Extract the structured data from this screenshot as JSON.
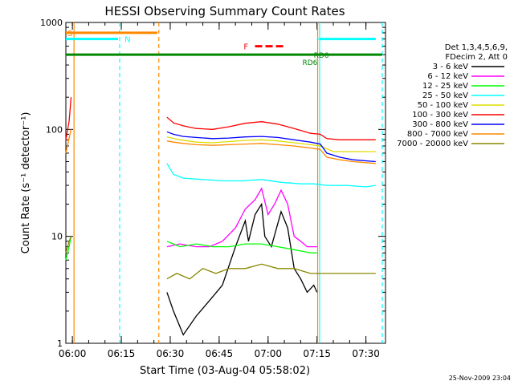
{
  "chart_data": {
    "type": "line",
    "title": "HESSI Observing Summary Count Rates",
    "xlabel": "Start Time (03-Aug-04 05:58:02)",
    "ylabel": "Count Rate (s⁻¹ detector⁻¹)",
    "ylog": true,
    "ylim": [
      1,
      1000
    ],
    "xlim_minutes": [
      0,
      98
    ],
    "x_ticks": [
      {
        "label": "06:00",
        "value": 2
      },
      {
        "label": "06:15",
        "value": 17
      },
      {
        "label": "06:30",
        "value": 32
      },
      {
        "label": "06:45",
        "value": 47
      },
      {
        "label": "07:00",
        "value": 62
      },
      {
        "label": "07:15",
        "value": 77
      },
      {
        "label": "07:30",
        "value": 92
      }
    ],
    "y_ticks": [
      {
        "label": "1",
        "value": 1
      },
      {
        "label": "10",
        "value": 10
      },
      {
        "label": "100",
        "value": 100
      },
      {
        "label": "1000",
        "value": 1000
      }
    ],
    "legend": {
      "placement": "right",
      "header": [
        "Det 1,3,4,5,6,9,",
        "FDecim 2, Att 0"
      ]
    },
    "series": [
      {
        "name": "3 - 6 keV",
        "color": "#000000",
        "segments": [
          [
            [
              31,
              3
            ],
            [
              33,
              2
            ],
            [
              36,
              1.2
            ],
            [
              40,
              1.8
            ],
            [
              44,
              2.5
            ],
            [
              48,
              3.5
            ],
            [
              52,
              8
            ],
            [
              55,
              14
            ],
            [
              56,
              9
            ],
            [
              58,
              16
            ],
            [
              60,
              20
            ],
            [
              61,
              10
            ],
            [
              63,
              8
            ],
            [
              66,
              17
            ],
            [
              68,
              12
            ],
            [
              70,
              5
            ],
            [
              72,
              4
            ],
            [
              74,
              3
            ],
            [
              76,
              3.5
            ],
            [
              77,
              3
            ]
          ]
        ]
      },
      {
        "name": "6 - 12 keV",
        "color": "#ff00ff",
        "segments": [
          [
            [
              31,
              8
            ],
            [
              35,
              8.5
            ],
            [
              40,
              8
            ],
            [
              44,
              8
            ],
            [
              48,
              9
            ],
            [
              52,
              12
            ],
            [
              55,
              18
            ],
            [
              58,
              22
            ],
            [
              60,
              28
            ],
            [
              62,
              16
            ],
            [
              64,
              20
            ],
            [
              66,
              27
            ],
            [
              68,
              20
            ],
            [
              70,
              10
            ],
            [
              72,
              9
            ],
            [
              74,
              8
            ],
            [
              77,
              8
            ]
          ]
        ]
      },
      {
        "name": "12 - 25 keV",
        "color": "#00ff00",
        "segments": [
          [
            [
              0,
              6
            ],
            [
              1,
              8
            ],
            [
              1.6,
              10
            ]
          ],
          [
            [
              31,
              9
            ],
            [
              35,
              8
            ],
            [
              40,
              8.5
            ],
            [
              45,
              8
            ],
            [
              50,
              8
            ],
            [
              55,
              8.5
            ],
            [
              60,
              8.5
            ],
            [
              65,
              8
            ],
            [
              70,
              7.5
            ],
            [
              75,
              7
            ],
            [
              77,
              7
            ]
          ]
        ]
      },
      {
        "name": "25 - 50 keV",
        "color": "#00ffff",
        "segments": [
          [
            [
              0,
              700
            ],
            [
              16,
              700
            ]
          ],
          [
            [
              31,
              48
            ],
            [
              33,
              38
            ],
            [
              36,
              35
            ],
            [
              42,
              34
            ],
            [
              48,
              33
            ],
            [
              54,
              33
            ],
            [
              60,
              34
            ],
            [
              66,
              32
            ],
            [
              72,
              31
            ],
            [
              76,
              31
            ],
            [
              80,
              30
            ],
            [
              86,
              30
            ],
            [
              92,
              29
            ],
            [
              95,
              30
            ]
          ],
          [
            [
              77,
              700
            ],
            [
              95,
              700
            ]
          ]
        ]
      },
      {
        "name": "50 - 100 keV",
        "color": "#dddd00",
        "segments": [
          [
            [
              31,
              85
            ],
            [
              35,
              80
            ],
            [
              40,
              76
            ],
            [
              45,
              75
            ],
            [
              50,
              77
            ],
            [
              55,
              79
            ],
            [
              60,
              80
            ],
            [
              65,
              78
            ],
            [
              70,
              75
            ],
            [
              75,
              72
            ],
            [
              78,
              70
            ],
            [
              82,
              62
            ],
            [
              88,
              62
            ],
            [
              95,
              62
            ]
          ]
        ]
      },
      {
        "name": "100 - 300 keV",
        "color": "#ff0000",
        "segments": [
          [
            [
              0,
              80
            ],
            [
              1,
              120
            ],
            [
              1.6,
              200
            ]
          ],
          [
            [
              31,
              130
            ],
            [
              33,
              115
            ],
            [
              36,
              108
            ],
            [
              40,
              102
            ],
            [
              45,
              100
            ],
            [
              50,
              106
            ],
            [
              55,
              114
            ],
            [
              60,
              118
            ],
            [
              65,
              112
            ],
            [
              70,
              102
            ],
            [
              75,
              92
            ],
            [
              78,
              90
            ],
            [
              80,
              82
            ],
            [
              84,
              80
            ],
            [
              88,
              80
            ],
            [
              95,
              80
            ]
          ]
        ]
      },
      {
        "name": "300 - 800 keV",
        "color": "#0000ff",
        "segments": [
          [
            [
              31,
              95
            ],
            [
              33,
              90
            ],
            [
              36,
              86
            ],
            [
              40,
              84
            ],
            [
              45,
              82
            ],
            [
              50,
              83
            ],
            [
              55,
              85
            ],
            [
              60,
              86
            ],
            [
              65,
              84
            ],
            [
              70,
              80
            ],
            [
              75,
              76
            ],
            [
              78,
              73
            ],
            [
              80,
              60
            ],
            [
              84,
              55
            ],
            [
              88,
              52
            ],
            [
              95,
              50
            ]
          ]
        ]
      },
      {
        "name": "800 - 7000 keV",
        "color": "#ff8800",
        "segments": [
          [
            [
              0,
              60
            ],
            [
              1.6,
              100
            ]
          ],
          [
            [
              0,
              800
            ],
            [
              28,
              800
            ]
          ],
          [
            [
              31,
              78
            ],
            [
              33,
              76
            ],
            [
              36,
              74
            ],
            [
              40,
              72
            ],
            [
              45,
              71
            ],
            [
              50,
              72
            ],
            [
              55,
              73
            ],
            [
              60,
              74
            ],
            [
              65,
              72
            ],
            [
              70,
              70
            ],
            [
              75,
              67
            ],
            [
              78,
              65
            ],
            [
              80,
              55
            ],
            [
              84,
              52
            ],
            [
              88,
              50
            ],
            [
              95,
              48
            ]
          ]
        ]
      },
      {
        "name": "7000 - 20000 keV",
        "color": "#888800",
        "segments": [
          [
            [
              0,
              7
            ],
            [
              1,
              9
            ],
            [
              1.6,
              10
            ]
          ],
          [
            [
              31,
              4
            ],
            [
              34,
              4.5
            ],
            [
              38,
              4
            ],
            [
              42,
              5
            ],
            [
              46,
              4.5
            ],
            [
              50,
              5
            ],
            [
              55,
              5
            ],
            [
              60,
              5.5
            ],
            [
              65,
              5
            ],
            [
              70,
              5
            ],
            [
              75,
              4.5
            ],
            [
              78,
              4.5
            ],
            [
              82,
              4.5
            ],
            [
              88,
              4.5
            ],
            [
              95,
              4.5
            ]
          ]
        ]
      }
    ],
    "vlines": [
      {
        "x": 2.5,
        "color": "#ff8800",
        "style": "solid"
      },
      {
        "x": 16.5,
        "color": "#00ffff",
        "style": "dashed"
      },
      {
        "x": 28.5,
        "color": "#ff8800",
        "style": "dashed"
      },
      {
        "x": 77.2,
        "color": "#ff8800",
        "style": "solid"
      },
      {
        "x": 77.8,
        "color": "#00ffff",
        "style": "solid"
      },
      {
        "x": 97,
        "color": "#00ffff",
        "style": "dashed"
      }
    ],
    "flag_bars": [
      {
        "label": "S",
        "color": "#ff8800",
        "y": 800,
        "x_from": 0,
        "x_to": 28,
        "label_x": 0.5
      },
      {
        "label": "N",
        "color": "#00ffff",
        "y": 700,
        "x_from": 0,
        "x_to": 16,
        "label_x": 18
      },
      {
        "label": "",
        "color": "#00ffff",
        "y": 700,
        "x_from": 77.8,
        "x_to": 95
      },
      {
        "label": "",
        "color": "#008800",
        "y": 500,
        "x_from": 0,
        "x_to": 97
      },
      {
        "label": "F",
        "color": "#ff0000",
        "y": 600,
        "x_from": 58,
        "x_to": 67,
        "label_x": 54.5,
        "dashed": true
      }
    ],
    "annotations": [
      {
        "text": "RD6",
        "color": "#008800",
        "x": 72.5,
        "y": 430
      },
      {
        "text": "RD0",
        "color": "#008800",
        "x": 76,
        "y": 500
      }
    ]
  },
  "footer": {
    "timestamp": "25-Nov-2009 23:04"
  }
}
